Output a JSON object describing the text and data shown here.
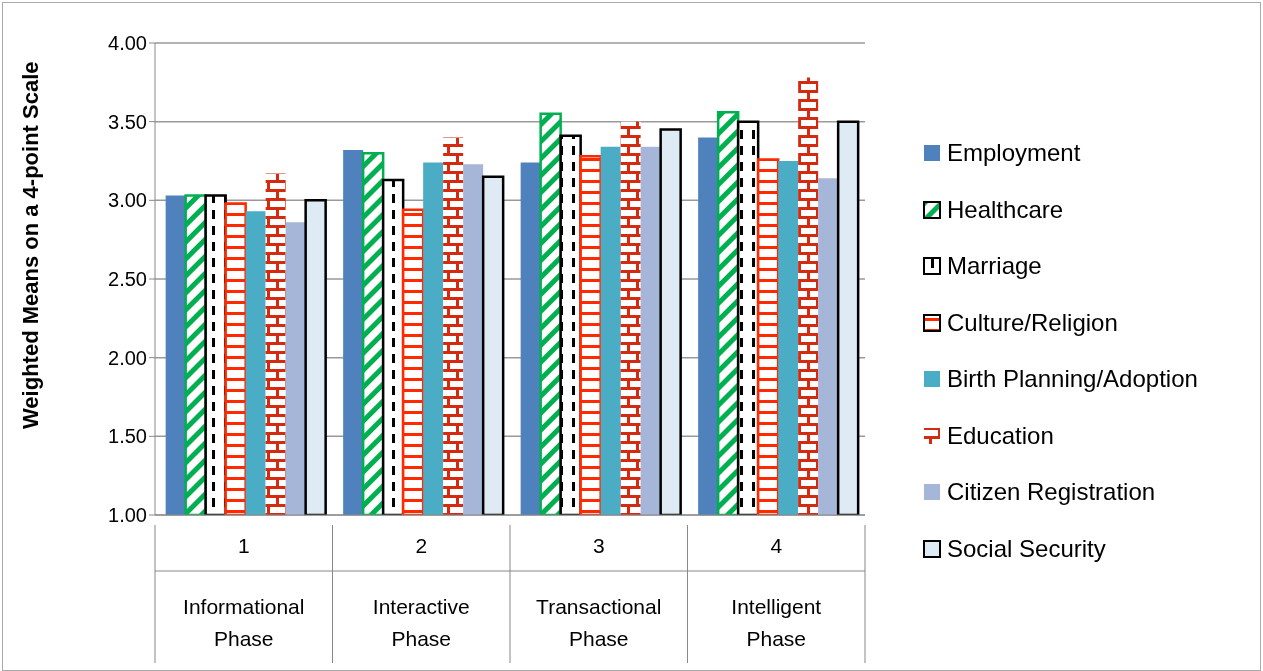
{
  "chart_data": {
    "type": "bar",
    "ylabel": "Weighted Means on a 4-point Scale",
    "categories": [
      "1\nInformational Phase",
      "2\nInteractive Phase",
      "3\nTransactional Phase",
      "4\nIntelligent Phase"
    ],
    "series": [
      {
        "name": "Employment",
        "color": "#4f81bd",
        "values": [
          3.03,
          3.32,
          3.24,
          3.4
        ]
      },
      {
        "name": "Healthcare",
        "color": "#00b050",
        "values": [
          3.03,
          3.3,
          3.55,
          3.56
        ]
      },
      {
        "name": "Marriage",
        "color": "#000000",
        "values": [
          3.03,
          3.13,
          3.41,
          3.5
        ]
      },
      {
        "name": "Culture/Religion",
        "color": "#ff2a00",
        "values": [
          2.98,
          2.94,
          3.28,
          3.26
        ]
      },
      {
        "name": "Birth Planning/Adoption",
        "color": "#4bacc6",
        "values": [
          2.93,
          3.24,
          3.34,
          3.25
        ]
      },
      {
        "name": "Education",
        "color": "#d42a10",
        "values": [
          3.17,
          3.4,
          3.5,
          3.78
        ]
      },
      {
        "name": "Citizen Registration",
        "color": "#a5b6d9",
        "values": [
          2.86,
          3.23,
          3.34,
          3.14
        ]
      },
      {
        "name": "Social Security",
        "color": "#deebf5",
        "values": [
          3.0,
          3.15,
          3.45,
          3.5
        ]
      }
    ],
    "ylim": [
      1,
      4
    ],
    "yticks": [
      {
        "value": 1,
        "label": "1.00"
      },
      {
        "value": 1.5,
        "label": "1.50"
      },
      {
        "value": 2,
        "label": "2.00"
      },
      {
        "value": 2.5,
        "label": "2.50"
      },
      {
        "value": 3,
        "label": "3.00"
      },
      {
        "value": 3.5,
        "label": "3.50"
      },
      {
        "value": 4,
        "label": "4.00"
      }
    ],
    "grid": "y",
    "legend": "right"
  }
}
